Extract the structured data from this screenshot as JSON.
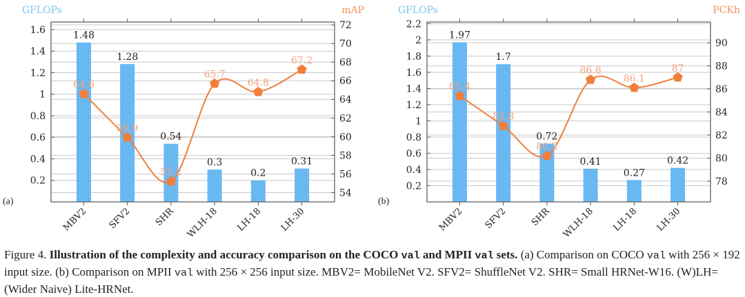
{
  "colors": {
    "bar": "#6ab8f2",
    "line": "#f07f3c",
    "line_label": "#f4a27a",
    "left_axis_title": "#7cc3ee",
    "right_axis_title": "#f0955a",
    "grid": "#c8c8c8"
  },
  "chart_data": [
    {
      "type": "bar+line",
      "panel_label": "(a)",
      "categories": [
        "MBV2",
        "SFV2",
        "SHR",
        "WLH-18",
        "LH-18",
        "LH-30"
      ],
      "series": [
        {
          "name": "GFLOPs",
          "type": "bar",
          "axis": "left",
          "values": [
            1.48,
            1.28,
            0.54,
            0.3,
            0.2,
            0.31
          ],
          "labels": [
            "1.48",
            "1.28",
            "0.54",
            "0.3",
            "0.2",
            "0.31"
          ]
        },
        {
          "name": "mAP",
          "type": "line",
          "axis": "right",
          "marker": "pentagon",
          "values": [
            64.6,
            59.9,
            55.2,
            65.7,
            64.8,
            67.2
          ],
          "labels": [
            "64.6",
            "59.9",
            "55.2",
            "65.7",
            "64.8",
            "67.2"
          ]
        }
      ],
      "left_axis": {
        "title": "GFLOPs",
        "range": [
          0,
          1.67
        ],
        "ticks": [
          0.2,
          0.4,
          0.6,
          0.8,
          1,
          1.2,
          1.4,
          1.6
        ],
        "tick_labels": [
          "0.2",
          "0.4",
          "0.6",
          "0.8",
          "1",
          "1.2",
          "1.4",
          "1.6"
        ]
      },
      "right_axis": {
        "title": "mAP",
        "range": [
          53,
          72.3
        ],
        "ticks": [
          54,
          56,
          58,
          60,
          62,
          64,
          66,
          68,
          70,
          72
        ],
        "tick_labels": [
          "54",
          "56",
          "58",
          "60",
          "62",
          "64",
          "66",
          "68",
          "70",
          "72"
        ]
      },
      "grid": true,
      "legend": "none"
    },
    {
      "type": "bar+line",
      "panel_label": "(b)",
      "categories": [
        "MBV2",
        "SFV2",
        "SHR",
        "WLH-18",
        "LH-18",
        "LH-30"
      ],
      "series": [
        {
          "name": "GFLOPs",
          "type": "bar",
          "axis": "left",
          "values": [
            1.97,
            1.7,
            0.72,
            0.41,
            0.27,
            0.42
          ],
          "labels": [
            "1.97",
            "1.7",
            "0.72",
            "0.41",
            "0.27",
            "0.42"
          ]
        },
        {
          "name": "PCKh",
          "type": "line",
          "axis": "right",
          "marker": "pentagon",
          "values": [
            85.4,
            82.8,
            80.2,
            86.8,
            86.1,
            87
          ],
          "labels": [
            "85.4",
            "82.8",
            "80.2",
            "86.8",
            "86.1",
            "87"
          ]
        }
      ],
      "left_axis": {
        "title": "GFLOPs",
        "range": [
          0,
          2.22
        ],
        "ticks": [
          0.2,
          0.4,
          0.6,
          0.8,
          1,
          1.2,
          1.4,
          1.6,
          1.8,
          2,
          2.2
        ],
        "tick_labels": [
          "0.2",
          "0.4",
          "0.6",
          "0.8",
          "1",
          "1.2",
          "1.4",
          "1.6",
          "1.8",
          "2",
          "2.2"
        ]
      },
      "right_axis": {
        "title": "PCKh",
        "range": [
          76.2,
          91.8
        ],
        "ticks": [
          78,
          80,
          82,
          84,
          86,
          88,
          90
        ],
        "tick_labels": [
          "78",
          "80",
          "82",
          "84",
          "86",
          "88",
          "90"
        ]
      },
      "grid": true,
      "legend": "none"
    }
  ],
  "caption": {
    "figure_label": "Figure 4.",
    "bold_part1": "Illustration of the complexity and accuracy comparison on the COCO ",
    "bold_mono1": "val",
    "bold_part2": " and MPII ",
    "bold_mono2": "val",
    "bold_part3": " sets.",
    "text1": " (a) Comparison on COCO ",
    "mono1": "val",
    "text2": " with 256 × 192 input size. (b) Comparison on MPII ",
    "mono2": "val",
    "text3": " with 256 × 256 input size. MBV2= MobileNet V2. SFV2= ShuffleNet V2. SHR= Small HRNet-W16. (W)LH= (Wider Naive) Lite-HRNet."
  }
}
